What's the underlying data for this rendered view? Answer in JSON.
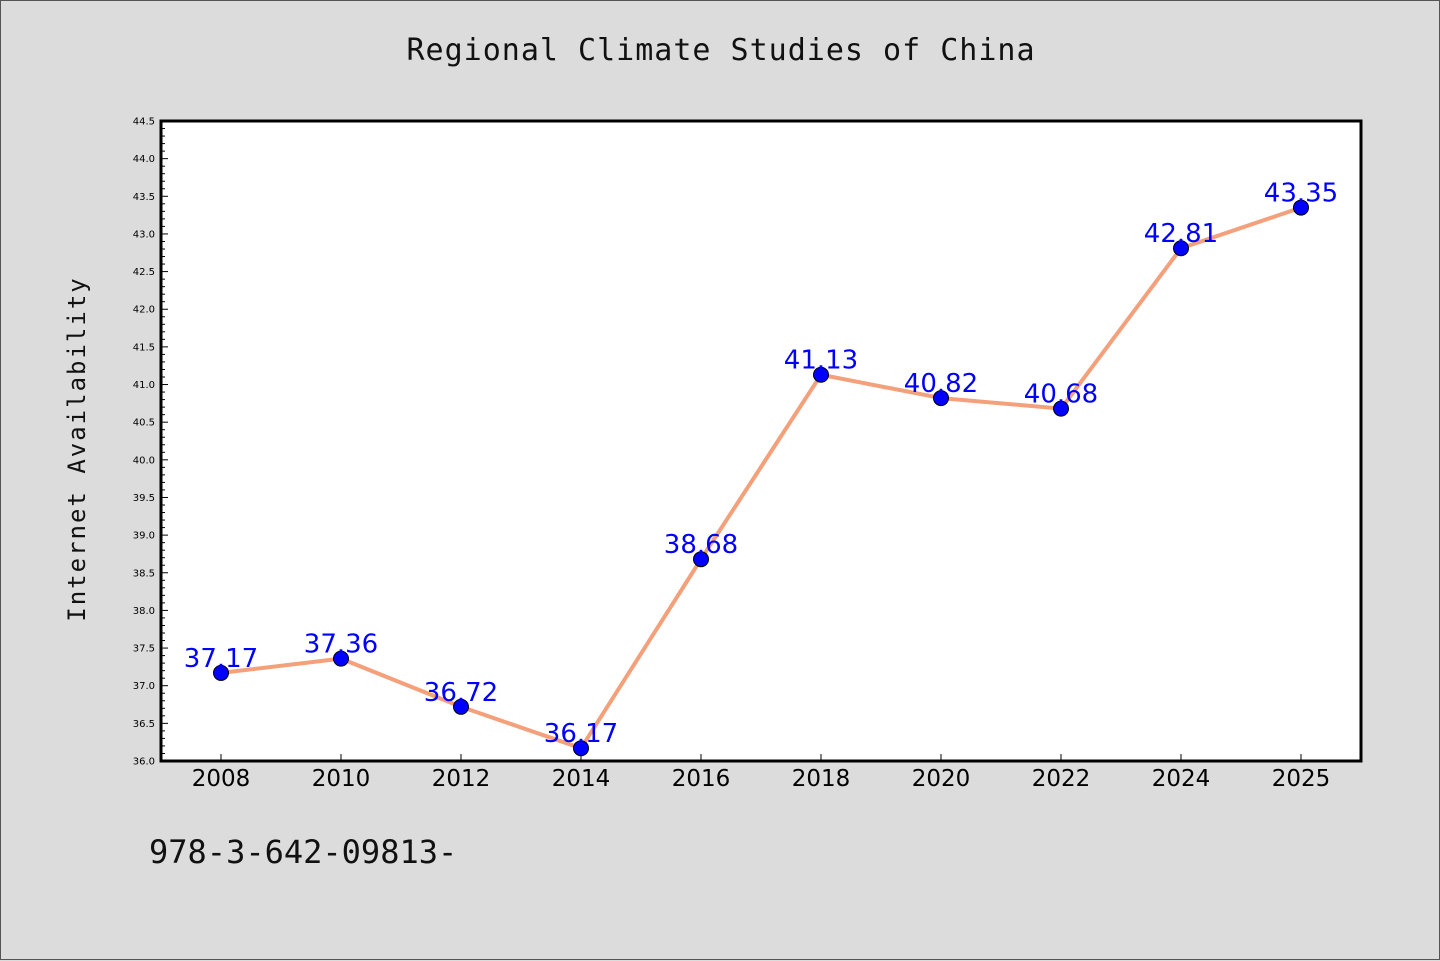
{
  "chart_data": {
    "type": "line",
    "title": "Regional Climate Studies of China",
    "xlabel": "",
    "ylabel": "Internet Availability",
    "categories": [
      "2008",
      "2010",
      "2012",
      "2014",
      "2016",
      "2018",
      "2020",
      "2022",
      "2024",
      "2025"
    ],
    "series": [
      {
        "values": [
          37.17,
          37.36,
          36.72,
          36.17,
          38.68,
          41.13,
          40.82,
          40.68,
          42.81,
          43.35
        ],
        "labels": [
          "37.17",
          "37.36",
          "36.72",
          "36.17",
          "38.68",
          "41.13",
          "40.82",
          "40.68",
          "42.81",
          "43.35"
        ],
        "line_color": "#f4a07a",
        "marker_color": "#0000ff"
      }
    ],
    "ylim": [
      36.0,
      44.5
    ],
    "yticks": [
      "36.0",
      "36.5",
      "37.0",
      "37.5",
      "38.0",
      "38.5",
      "39.0",
      "39.5",
      "40.0",
      "40.5",
      "41.0",
      "41.5",
      "42.0",
      "42.5",
      "43.0",
      "43.5",
      "44.0",
      "44.5"
    ],
    "grid": false,
    "label_color": "#0000ff"
  },
  "footnote": "978-3-642-09813-"
}
